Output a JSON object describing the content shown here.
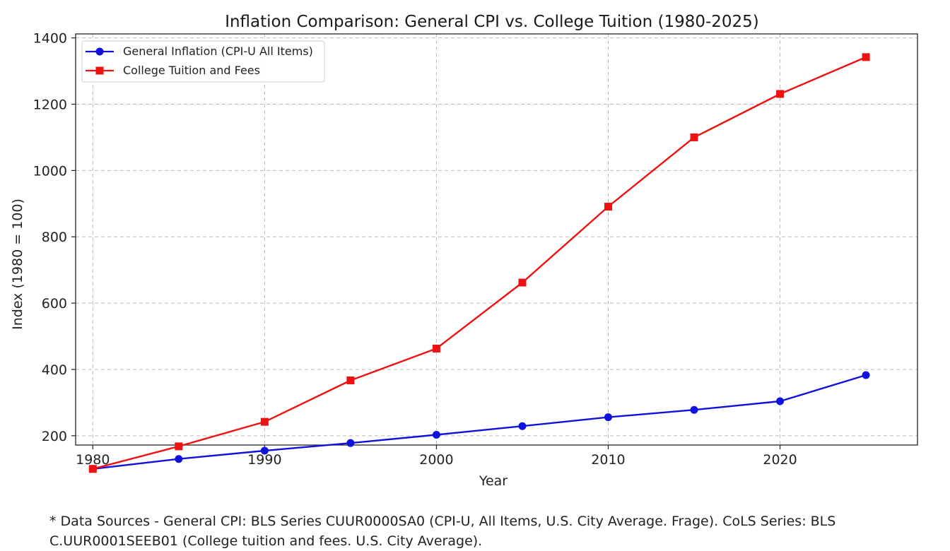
{
  "chart_data": {
    "type": "line",
    "title": "Inflation Comparison: General CPI vs. College Tuition (1980-2025)",
    "xlabel": "Year",
    "ylabel": "Index (1980 = 100)",
    "xlim": [
      1979,
      2028
    ],
    "ylim": [
      172,
      1412
    ],
    "x_ticks": [
      1980,
      1990,
      2000,
      2010,
      2020
    ],
    "y_ticks": [
      200,
      400,
      600,
      800,
      1000,
      1200,
      1400
    ],
    "grid": true,
    "legend_position": "top-left",
    "x": [
      1980,
      1985,
      1990,
      1995,
      2000,
      2005,
      2010,
      2015,
      2020,
      2025
    ],
    "series": [
      {
        "name": "General Inflation (CPI-U All Items)",
        "color": "#1111dd",
        "marker": "circle",
        "values": [
          100,
          130,
          155,
          178,
          203,
          229,
          256,
          278,
          304,
          383
        ]
      },
      {
        "name": "College Tuition and Fees",
        "color": "#ee1111",
        "marker": "square",
        "values": [
          100,
          168,
          242,
          367,
          463,
          662,
          891,
          1100,
          1231,
          1342
        ]
      }
    ]
  },
  "footnote": {
    "line1": "*  Data Sources - General CPI: BLS Series CUUR0000SA0 (CPI-U, All Items, U.S. City Average. Frage). CoLS Series: BLS",
    "line2": "C.UUR0001SEEB01 (College tuition and fees. U.S. City Average)."
  }
}
